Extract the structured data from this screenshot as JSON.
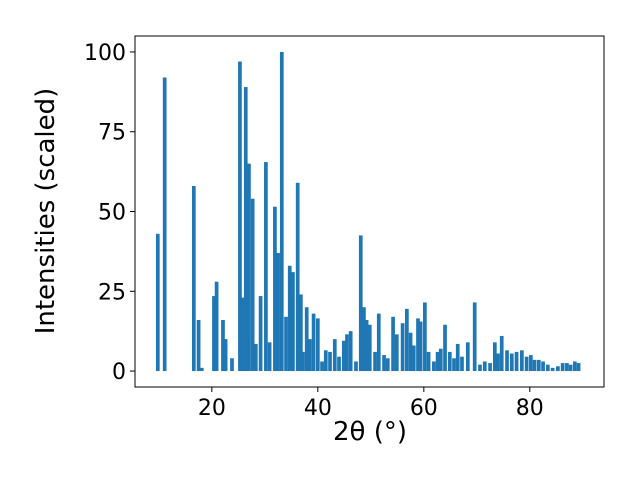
{
  "chart_data": {
    "type": "bar",
    "xlabel": "2θ (°)",
    "ylabel": "Intensities (scaled)",
    "color": "#1f77b4",
    "bar_width": 0.7,
    "x": [
      9.8,
      11.1,
      16.6,
      17.5,
      18.1,
      20.4,
      20.9,
      22.1,
      22.6,
      23.8,
      25.3,
      25.8,
      26.4,
      27,
      27.7,
      28.3,
      29.2,
      30.2,
      30.9,
      31.9,
      32.5,
      33.2,
      34,
      34.7,
      35.3,
      36.2,
      36.8,
      37.2,
      37.9,
      38.5,
      39.2,
      40,
      40.8,
      41.5,
      42.3,
      43.2,
      44,
      44.9,
      45.5,
      46.2,
      47.2,
      48.1,
      48.7,
      49.2,
      49.8,
      50.8,
      51.5,
      52.5,
      53.2,
      54.2,
      54.9,
      56,
      56.8,
      57.5,
      58.1,
      58.9,
      59.4,
      60.2,
      60.9,
      61.9,
      62.6,
      63.2,
      64,
      64.9,
      65.7,
      66.4,
      67.2,
      68.3,
      69.6,
      70.6,
      71.5,
      72.5,
      73.4,
      74,
      74.7,
      75.7,
      76.6,
      77.5,
      78.5,
      79.4,
      80.2,
      80.9,
      81.7,
      82.5,
      83.4,
      84.3,
      85.3,
      86.2,
      87,
      87.7,
      88.5,
      89.2
    ],
    "values": [
      43,
      92,
      58,
      16,
      1,
      23.5,
      28,
      16,
      10,
      4,
      97,
      23,
      89,
      65,
      54,
      8.5,
      23.5,
      65.5,
      9,
      51.5,
      37,
      100,
      17,
      33,
      31,
      59,
      24,
      6,
      20,
      10,
      18,
      16.5,
      3,
      6.5,
      6,
      10,
      4.5,
      9.5,
      11.5,
      12.5,
      3,
      42.5,
      20,
      16,
      14.5,
      6,
      18,
      5,
      4,
      17,
      11.5,
      15,
      19.5,
      12,
      8,
      16.5,
      15.5,
      21.5,
      6,
      3,
      6,
      7,
      14.5,
      6,
      4,
      8.5,
      4.5,
      9,
      21.5,
      2,
      3,
      2.5,
      9,
      5.5,
      11,
      6.5,
      5.5,
      6,
      6.5,
      4.5,
      5,
      3.5,
      3.5,
      3,
      2,
      1,
      1.5,
      2.5,
      2.5,
      2,
      3,
      2.5
    ],
    "xlim": [
      5.5,
      94
    ],
    "ylim": [
      -5,
      105
    ],
    "xticks": [
      20,
      40,
      60,
      80
    ],
    "yticks": [
      0,
      25,
      50,
      75,
      100
    ]
  }
}
